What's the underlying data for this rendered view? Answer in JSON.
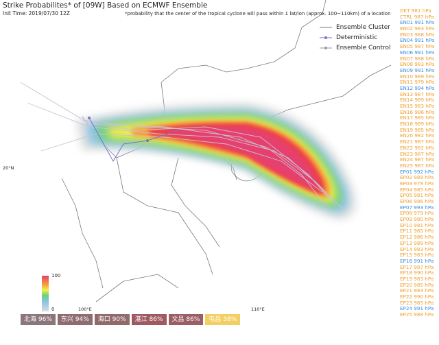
{
  "title": "Strike Probabilites* of [09W] Based on ECMWF Ensemble",
  "init_time": "Init Time: 2019/07/30 12Z",
  "note": "*probability that the center of the tropical cyclone will pass within 1 lat/lon (approx. 100~110km) of a location",
  "legend": [
    "Ensemble Cluster",
    "Deterministic",
    "Ensemble Control"
  ],
  "axes": {
    "lat": "20°N",
    "lon": [
      "100°E",
      "110°E"
    ]
  },
  "colorbar": {
    "max": "100",
    "min": "0"
  },
  "members": [
    {
      "label": "DET 981 hPa",
      "color": "#f0a030"
    },
    {
      "label": "CTRL 987 hPa",
      "color": "#f0a030"
    },
    {
      "label": "EN01 991 hPa",
      "color": "#3c8fe0"
    },
    {
      "label": "EN02 983 hPa",
      "color": "#f0a030"
    },
    {
      "label": "EN03 988 hPa",
      "color": "#f0a030"
    },
    {
      "label": "EN04 991 hPa",
      "color": "#3c8fe0"
    },
    {
      "label": "EN05 987 hPa",
      "color": "#f0a030"
    },
    {
      "label": "EN06 991 hPa",
      "color": "#3c8fe0"
    },
    {
      "label": "EN07 988 hPa",
      "color": "#f0a030"
    },
    {
      "label": "EN08 983 hPa",
      "color": "#f0a030"
    },
    {
      "label": "EN09 991 hPa",
      "color": "#3c8fe0"
    },
    {
      "label": "EN10 989 hPa",
      "color": "#f0a030"
    },
    {
      "label": "EN11 979 hPa",
      "color": "#f0a030"
    },
    {
      "label": "EN12 994 hPa",
      "color": "#3c8fe0"
    },
    {
      "label": "EN13 987 hPa",
      "color": "#f0a030"
    },
    {
      "label": "EN14 989 hPa",
      "color": "#f0a030"
    },
    {
      "label": "EN15 983 hPa",
      "color": "#f0a030"
    },
    {
      "label": "EN16 986 hPa",
      "color": "#f0a030"
    },
    {
      "label": "EN17 985 hPa",
      "color": "#f0a030"
    },
    {
      "label": "EN18 989 hPa",
      "color": "#f0a030"
    },
    {
      "label": "EN19 985 hPa",
      "color": "#f0a030"
    },
    {
      "label": "EN20 982 hPa",
      "color": "#f0a030"
    },
    {
      "label": "EN21 987 hPa",
      "color": "#f0a030"
    },
    {
      "label": "EN22 982 hPa",
      "color": "#f0a030"
    },
    {
      "label": "EN23 987 hPa",
      "color": "#f0a030"
    },
    {
      "label": "EN24 987 hPa",
      "color": "#f0a030"
    },
    {
      "label": "EN25 987 hPa",
      "color": "#f0a030"
    },
    {
      "label": "EP01 992 hPa",
      "color": "#3c8fe0"
    },
    {
      "label": "EP02 989 hPa",
      "color": "#f0a030"
    },
    {
      "label": "EP03 978 hPa",
      "color": "#f0a030"
    },
    {
      "label": "EP04 985 hPa",
      "color": "#f0a030"
    },
    {
      "label": "EP05 981 hPa",
      "color": "#f0a030"
    },
    {
      "label": "EP06 986 hPa",
      "color": "#f0a030"
    },
    {
      "label": "EP07 993 hPa",
      "color": "#3c8fe0"
    },
    {
      "label": "EP08 979 hPa",
      "color": "#f0a030"
    },
    {
      "label": "EP09 980 hPa",
      "color": "#f0a030"
    },
    {
      "label": "EP10 981 hPa",
      "color": "#f0a030"
    },
    {
      "label": "EP11 985 hPa",
      "color": "#f0a030"
    },
    {
      "label": "EP12 986 hPa",
      "color": "#f0a030"
    },
    {
      "label": "EP13 989 hPa",
      "color": "#f0a030"
    },
    {
      "label": "EP14 983 hPa",
      "color": "#f0a030"
    },
    {
      "label": "EP15 983 hPa",
      "color": "#f0a030"
    },
    {
      "label": "EP16 991 hPa",
      "color": "#3c8fe0"
    },
    {
      "label": "EP17 987 hPa",
      "color": "#f0a030"
    },
    {
      "label": "EP18 990 hPa",
      "color": "#f0a030"
    },
    {
      "label": "EP19 983 hPa",
      "color": "#f0a030"
    },
    {
      "label": "EP20 985 hPa",
      "color": "#f0a030"
    },
    {
      "label": "EP21 983 hPa",
      "color": "#f0a030"
    },
    {
      "label": "EP22 990 hPa",
      "color": "#f0a030"
    },
    {
      "label": "EP23 985 hPa",
      "color": "#f0a030"
    },
    {
      "label": "EP24 991 hPa",
      "color": "#3c8fe0"
    },
    {
      "label": "EP25 988 hPa",
      "color": "#f0a030"
    }
  ],
  "cities": [
    {
      "label": "北海 96%",
      "color": "#8a767b"
    },
    {
      "label": "东兴 94%",
      "color": "#8e6c70"
    },
    {
      "label": "海口 90%",
      "color": "#906a6d"
    },
    {
      "label": "湛江 86%",
      "color": "#9e5a60"
    },
    {
      "label": "文昌 86%",
      "color": "#9a5e64"
    },
    {
      "label": "屯昌 38%",
      "color": "#f3cf63"
    }
  ]
}
